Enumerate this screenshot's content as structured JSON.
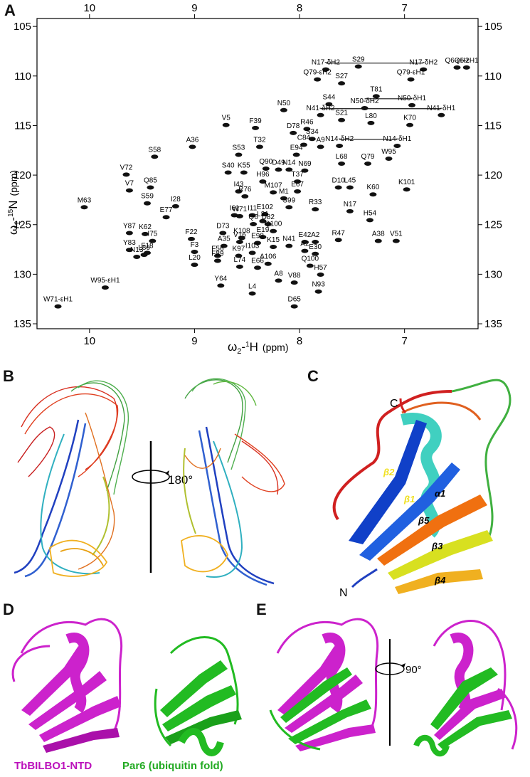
{
  "panels": {
    "a": "A",
    "b": "B",
    "c": "C",
    "d": "D",
    "e": "E"
  },
  "chart_data": {
    "type": "scatter",
    "title": "",
    "xlabel_main": "ω",
    "xlabel_sub": "2",
    "xlabel_tail": "-",
    "xlabel_sup": "1",
    "xlabel_nuc": "H",
    "xlabel_unit": "(ppm)",
    "ylabel_main": "ω",
    "ylabel_sub": "1",
    "ylabel_tail": "-",
    "ylabel_sup": "15",
    "ylabel_nuc": "N",
    "ylabel_unit": "(ppm)",
    "xlim": [
      10.5,
      6.3
    ],
    "ylim": [
      135.5,
      104.2
    ],
    "x_reversed": true,
    "y_reversed": true,
    "xticks": [
      10,
      9,
      8,
      7
    ],
    "yticks": [
      105,
      110,
      115,
      120,
      125,
      130,
      135
    ],
    "grid": false,
    "peaks": [
      {
        "label": "S29",
        "x": 7.44,
        "y": 108.4
      },
      {
        "label": "N17-δH2",
        "x": 7.75,
        "y": 108.7
      },
      {
        "label": "N17-δH2",
        "x": 6.82,
        "y": 108.7
      },
      {
        "label": "Q6-εH2",
        "x": 6.5,
        "y": 108.5
      },
      {
        "label": "Q6-εH1",
        "x": 6.41,
        "y": 108.5
      },
      {
        "label": "Q79-εH2",
        "x": 7.83,
        "y": 109.7
      },
      {
        "label": "S27",
        "x": 7.6,
        "y": 110.1
      },
      {
        "label": "Q79-εH1",
        "x": 6.94,
        "y": 109.7
      },
      {
        "label": "T81",
        "x": 7.27,
        "y": 111.4
      },
      {
        "label": "S44",
        "x": 7.72,
        "y": 112.2
      },
      {
        "label": "N50-δH2",
        "x": 7.38,
        "y": 112.6
      },
      {
        "label": "N50-δH1",
        "x": 6.93,
        "y": 112.3
      },
      {
        "label": "N50",
        "x": 8.15,
        "y": 112.8
      },
      {
        "label": "N41-δH2",
        "x": 7.8,
        "y": 113.3
      },
      {
        "label": "N41-δH1",
        "x": 6.65,
        "y": 113.3
      },
      {
        "label": "V5",
        "x": 8.7,
        "y": 114.3
      },
      {
        "label": "F39",
        "x": 8.42,
        "y": 114.6
      },
      {
        "label": "S21",
        "x": 7.6,
        "y": 113.8
      },
      {
        "label": "L80",
        "x": 7.32,
        "y": 114.1
      },
      {
        "label": "K70",
        "x": 6.95,
        "y": 114.3
      },
      {
        "label": "R46",
        "x": 7.93,
        "y": 114.7
      },
      {
        "label": "D78",
        "x": 8.06,
        "y": 115.1
      },
      {
        "label": "S34",
        "x": 7.88,
        "y": 115.7
      },
      {
        "label": "A36",
        "x": 9.02,
        "y": 116.5
      },
      {
        "label": "T32",
        "x": 8.38,
        "y": 116.5
      },
      {
        "label": "C84",
        "x": 7.96,
        "y": 116.3
      },
      {
        "label": "A9",
        "x": 7.8,
        "y": 116.5
      },
      {
        "label": "N14-δH2",
        "x": 7.62,
        "y": 116.4
      },
      {
        "label": "N14-δH1",
        "x": 7.07,
        "y": 116.4
      },
      {
        "label": "S53",
        "x": 8.58,
        "y": 117.3
      },
      {
        "label": "E94",
        "x": 8.03,
        "y": 117.3
      },
      {
        "label": "W95",
        "x": 7.15,
        "y": 117.7
      },
      {
        "label": "S58",
        "x": 9.38,
        "y": 117.5
      },
      {
        "label": "L68",
        "x": 7.6,
        "y": 118.2
      },
      {
        "label": "Q79",
        "x": 7.35,
        "y": 118.2
      },
      {
        "label": "Q90",
        "x": 8.32,
        "y": 118.7
      },
      {
        "label": "D49",
        "x": 8.2,
        "y": 118.8
      },
      {
        "label": "N14",
        "x": 8.1,
        "y": 118.8
      },
      {
        "label": "N69",
        "x": 7.95,
        "y": 118.9
      },
      {
        "label": "S40",
        "x": 8.68,
        "y": 119.1
      },
      {
        "label": "K55",
        "x": 8.53,
        "y": 119.1
      },
      {
        "label": "V72",
        "x": 9.65,
        "y": 119.3
      },
      {
        "label": "H96",
        "x": 8.35,
        "y": 120.0
      },
      {
        "label": "T37",
        "x": 8.02,
        "y": 120.0
      },
      {
        "label": "D10",
        "x": 7.63,
        "y": 120.6
      },
      {
        "label": "L45",
        "x": 7.52,
        "y": 120.6
      },
      {
        "label": "K60",
        "x": 7.3,
        "y": 121.3
      },
      {
        "label": "K101",
        "x": 6.98,
        "y": 120.8
      },
      {
        "label": "Q85",
        "x": 9.42,
        "y": 120.6
      },
      {
        "label": "I43",
        "x": 8.58,
        "y": 121.0
      },
      {
        "label": "M107",
        "x": 8.25,
        "y": 121.1
      },
      {
        "label": "E67",
        "x": 8.02,
        "y": 121.0
      },
      {
        "label": "V7",
        "x": 9.62,
        "y": 120.9
      },
      {
        "label": "R76",
        "x": 8.52,
        "y": 121.5
      },
      {
        "label": "M1",
        "x": 8.15,
        "y": 121.7
      },
      {
        "label": "S99",
        "x": 8.1,
        "y": 122.6
      },
      {
        "label": "R33",
        "x": 7.85,
        "y": 122.8
      },
      {
        "label": "N17",
        "x": 7.52,
        "y": 123.0
      },
      {
        "label": "H54",
        "x": 7.33,
        "y": 123.9
      },
      {
        "label": "S59",
        "x": 9.45,
        "y": 122.2
      },
      {
        "label": "I28",
        "x": 9.18,
        "y": 122.5
      },
      {
        "label": "M63",
        "x": 10.05,
        "y": 122.6
      },
      {
        "label": "I61",
        "x": 8.62,
        "y": 123.4
      },
      {
        "label": "W71",
        "x": 8.57,
        "y": 123.5
      },
      {
        "label": "I11",
        "x": 8.45,
        "y": 123.4
      },
      {
        "label": "E102",
        "x": 8.33,
        "y": 123.3
      },
      {
        "label": "L31",
        "x": 8.35,
        "y": 124.0
      },
      {
        "label": "Q6",
        "x": 8.44,
        "y": 124.3
      },
      {
        "label": "D82",
        "x": 8.3,
        "y": 124.3
      },
      {
        "label": "E77",
        "x": 9.27,
        "y": 123.6
      },
      {
        "label": "Q100",
        "x": 8.25,
        "y": 125.0
      },
      {
        "label": "D73",
        "x": 8.73,
        "y": 125.2
      },
      {
        "label": "E19",
        "x": 8.35,
        "y": 125.6
      },
      {
        "label": "K108",
        "x": 8.55,
        "y": 125.7
      },
      {
        "label": "F22",
        "x": 9.03,
        "y": 125.8
      },
      {
        "label": "V16",
        "x": 8.57,
        "y": 126.1
      },
      {
        "label": "E98",
        "x": 8.4,
        "y": 126.2
      },
      {
        "label": "K15",
        "x": 8.25,
        "y": 126.6
      },
      {
        "label": "N41",
        "x": 8.1,
        "y": 126.5
      },
      {
        "label": "E42",
        "x": 7.95,
        "y": 126.1
      },
      {
        "label": "A2",
        "x": 7.85,
        "y": 126.1
      },
      {
        "label": "R47",
        "x": 7.63,
        "y": 125.9
      },
      {
        "label": "A38",
        "x": 7.25,
        "y": 126.0
      },
      {
        "label": "V51",
        "x": 7.08,
        "y": 126.0
      },
      {
        "label": "A35",
        "x": 8.72,
        "y": 126.5
      },
      {
        "label": "Y87",
        "x": 9.62,
        "y": 125.2
      },
      {
        "label": "K62",
        "x": 9.47,
        "y": 125.3
      },
      {
        "label": "I75",
        "x": 9.4,
        "y": 126.0
      },
      {
        "label": "A2",
        "x": 7.95,
        "y": 127.0
      },
      {
        "label": "E30",
        "x": 7.85,
        "y": 127.3
      },
      {
        "label": "F3",
        "x": 9.0,
        "y": 127.1
      },
      {
        "label": "F56",
        "x": 8.78,
        "y": 127.5
      },
      {
        "label": "K97",
        "x": 8.58,
        "y": 127.5
      },
      {
        "label": "I103",
        "x": 8.45,
        "y": 127.2
      },
      {
        "label": "Y83",
        "x": 9.62,
        "y": 126.9
      },
      {
        "label": "F18",
        "x": 9.45,
        "y": 127.2
      },
      {
        "label": "N13",
        "x": 9.55,
        "y": 127.6
      },
      {
        "label": "L86",
        "x": 9.48,
        "y": 127.4
      },
      {
        "label": "F89",
        "x": 8.78,
        "y": 128.0
      },
      {
        "label": "A106",
        "x": 8.3,
        "y": 128.3
      },
      {
        "label": "Q100",
        "x": 7.9,
        "y": 128.5
      },
      {
        "label": "L20",
        "x": 9.0,
        "y": 128.4
      },
      {
        "label": "L74",
        "x": 8.57,
        "y": 128.6
      },
      {
        "label": "E66",
        "x": 8.4,
        "y": 128.7
      },
      {
        "label": "H57",
        "x": 7.8,
        "y": 129.4
      },
      {
        "label": "A8",
        "x": 8.2,
        "y": 130.0
      },
      {
        "label": "V88",
        "x": 8.05,
        "y": 130.2
      },
      {
        "label": "Y64",
        "x": 8.75,
        "y": 130.5
      },
      {
        "label": "W95-εH1",
        "x": 9.85,
        "y": 130.7
      },
      {
        "label": "N93",
        "x": 7.82,
        "y": 131.1
      },
      {
        "label": "L4",
        "x": 8.45,
        "y": 131.3
      },
      {
        "label": "D65",
        "x": 8.05,
        "y": 132.6
      },
      {
        "label": "W71-εH1",
        "x": 10.3,
        "y": 132.6
      }
    ],
    "connectors": [
      {
        "from": "N17-δH2",
        "x1": 7.75,
        "x2": 6.82,
        "y": 108.7
      },
      {
        "from": "N41-δH2",
        "x1": 7.8,
        "x2": 6.65,
        "y": 113.3
      },
      {
        "from": "N50-δH2",
        "x1": 7.38,
        "x2": 6.93,
        "y": 112.3
      },
      {
        "from": "N14-δH2",
        "x1": 7.62,
        "x2": 7.07,
        "y": 116.4
      }
    ]
  },
  "panel_b": {
    "rotation": "180°"
  },
  "panel_c": {
    "terminus_c": "C",
    "terminus_n": "N",
    "labels": [
      "β2",
      "β1",
      "α1",
      "β5",
      "β3",
      "β4"
    ]
  },
  "panel_e": {
    "rotation": "90°"
  },
  "captions": {
    "left": "TbBILBO1-NTD",
    "right": "Par6 (ubiquitin fold)"
  },
  "colors": {
    "magenta": "#cc22cc",
    "green": "#22bb22",
    "caption_magenta": "#bb11bb",
    "caption_green": "#22aa22"
  }
}
